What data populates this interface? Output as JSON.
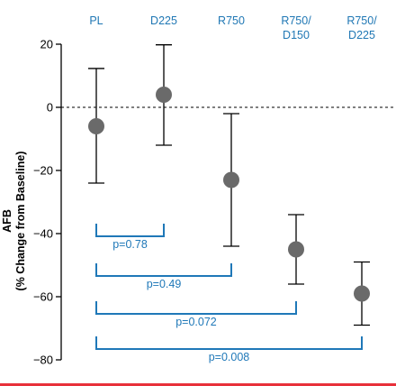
{
  "colors": {
    "category_text": "#1f77b4",
    "bracket": "#1f78b8",
    "marker": "#6a6a6a",
    "axis": "#000000",
    "bottom_border": "#e8303a"
  },
  "chart_data": {
    "type": "scatter",
    "title": "",
    "ylabel_line1": "AFB",
    "ylabel_line2": "(% Change from Baseline)",
    "ylim": [
      -80,
      20
    ],
    "yticks": [
      20,
      0,
      -20,
      -40,
      -60,
      -80
    ],
    "ytick_labels": [
      "20",
      "0",
      "−20",
      "−40",
      "−60",
      "−80"
    ],
    "reference_line": {
      "y": 0,
      "style": "dashed"
    },
    "grid": false,
    "categories": [
      {
        "lines": [
          "PL"
        ]
      },
      {
        "lines": [
          "D225"
        ]
      },
      {
        "lines": [
          "R750"
        ]
      },
      {
        "lines": [
          "R750/",
          "D150"
        ]
      },
      {
        "lines": [
          "R750/",
          "D225"
        ]
      }
    ],
    "points": [
      {
        "y": -6,
        "low": -24,
        "high": 12.3
      },
      {
        "y": 4,
        "low": -12,
        "high": 19.8
      },
      {
        "y": -23,
        "low": -44,
        "high": -2
      },
      {
        "y": -45,
        "low": -56,
        "high": -34
      },
      {
        "y": -59,
        "low": -69,
        "high": -49
      }
    ],
    "comparisons": [
      {
        "from": 0,
        "to": 1,
        "label": "p=0.78"
      },
      {
        "from": 0,
        "to": 2,
        "label": "p=0.49"
      },
      {
        "from": 0,
        "to": 3,
        "label": "p=0.072"
      },
      {
        "from": 0,
        "to": 4,
        "label": "p=0.008"
      }
    ]
  }
}
